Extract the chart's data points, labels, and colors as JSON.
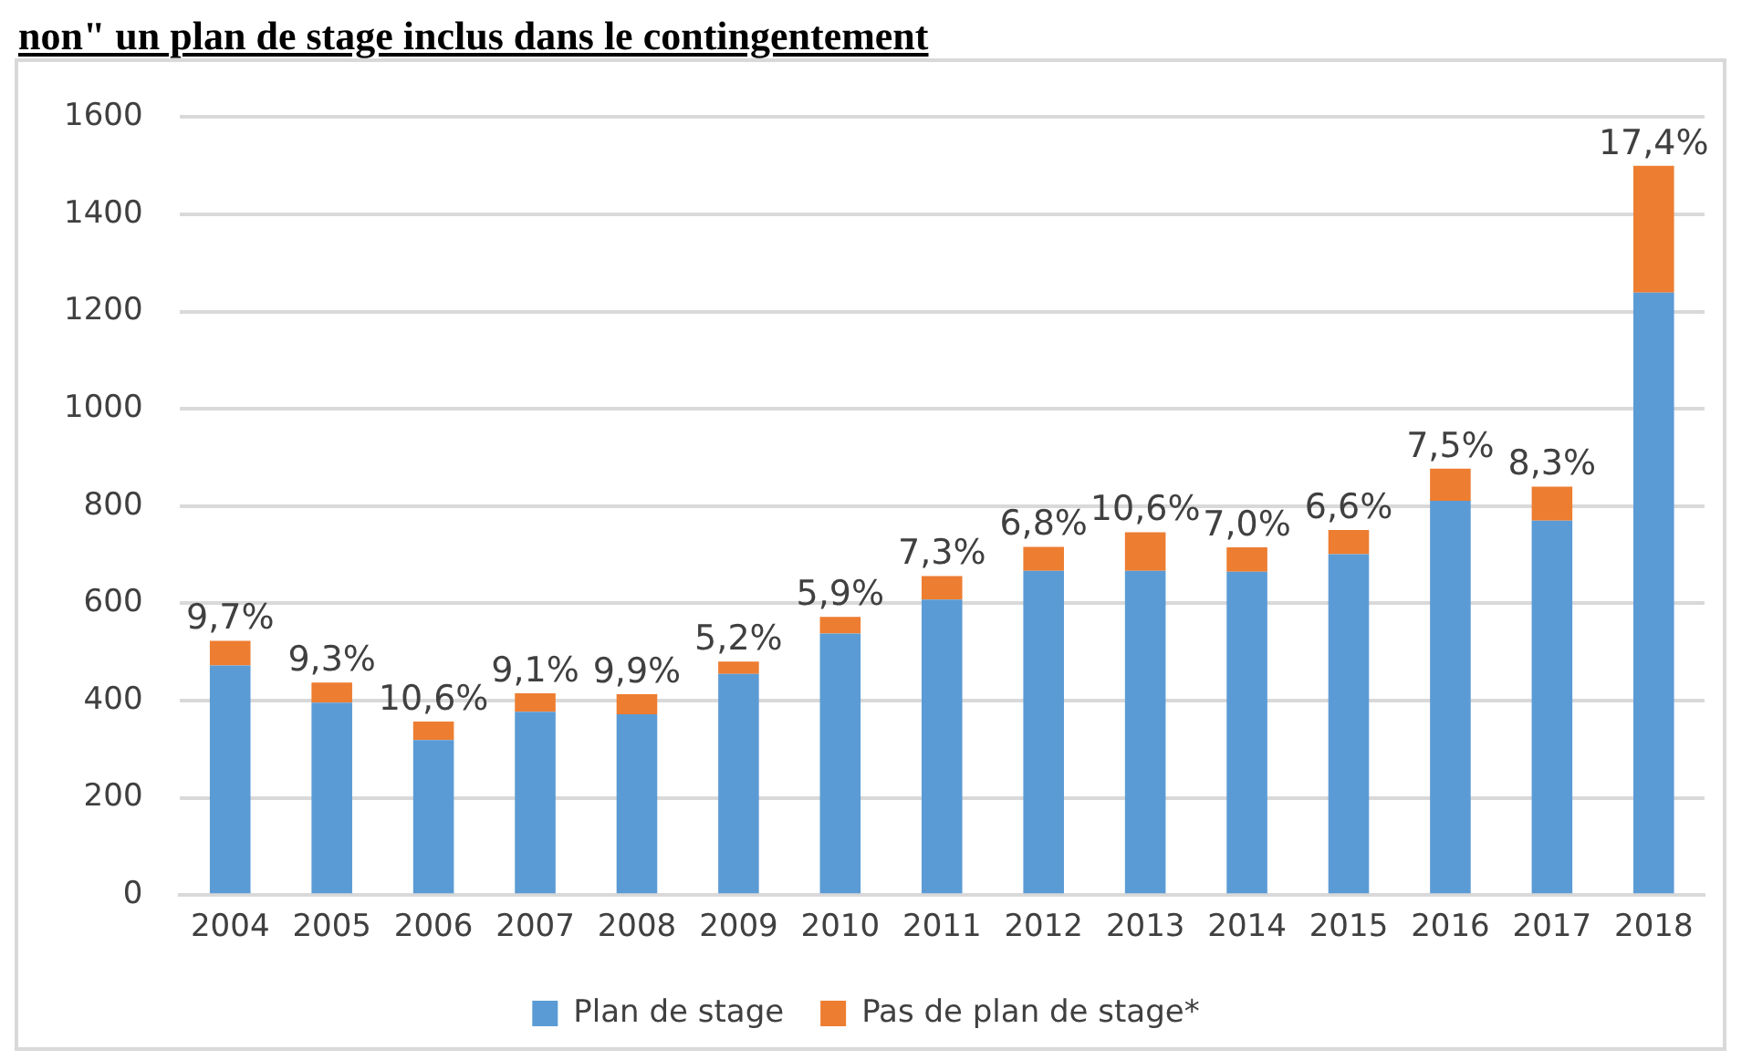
{
  "chart_data": {
    "type": "bar",
    "title": "non\" un plan de stage inclus dans le contingentement",
    "categories": [
      "2004",
      "2005",
      "2006",
      "2007",
      "2008",
      "2009",
      "2010",
      "2011",
      "2012",
      "2013",
      "2014",
      "2015",
      "2016",
      "2017",
      "2018"
    ],
    "series": [
      {
        "name": "Plan de stage",
        "color": "#5b9bd5",
        "values": [
          472,
          396,
          319,
          377,
          372,
          455,
          538,
          608,
          667,
          667,
          665,
          701,
          811,
          770,
          1239
        ]
      },
      {
        "name": "Pas de plan de stage*",
        "color": "#ed7d31",
        "values": [
          51,
          41,
          38,
          38,
          41,
          25,
          34,
          48,
          49,
          79,
          50,
          50,
          66,
          70,
          261
        ]
      }
    ],
    "stacked": true,
    "annotations": [
      {
        "text": "9,7%",
        "x": "2004",
        "y": 523
      },
      {
        "text": "9,3%",
        "x": "2005",
        "y": 437
      },
      {
        "text": "10,6%",
        "x": "2006",
        "y": 357
      },
      {
        "text": "9,1%",
        "x": "2007",
        "y": 415
      },
      {
        "text": "9,9%",
        "x": "2008",
        "y": 413
      },
      {
        "text": "5,2%",
        "x": "2009",
        "y": 480
      },
      {
        "text": "5,9%",
        "x": "2010",
        "y": 572
      },
      {
        "text": "7,3%",
        "x": "2011",
        "y": 656
      },
      {
        "text": "6,8%",
        "x": "2012",
        "y": 716
      },
      {
        "text": "10,6%",
        "x": "2013",
        "y": 746
      },
      {
        "text": "7,0%",
        "x": "2014",
        "y": 715
      },
      {
        "text": "6,6%",
        "x": "2015",
        "y": 751
      },
      {
        "text": "7,5%",
        "x": "2016",
        "y": 877
      },
      {
        "text": "8,3%",
        "x": "2017",
        "y": 840
      },
      {
        "text": "17,4%",
        "x": "2018",
        "y": 1500
      }
    ],
    "ylim": [
      0,
      1600
    ],
    "yticks": [
      0,
      200,
      400,
      600,
      800,
      1000,
      1200,
      1400,
      1600
    ],
    "grid": "y",
    "legend": "bottom"
  }
}
